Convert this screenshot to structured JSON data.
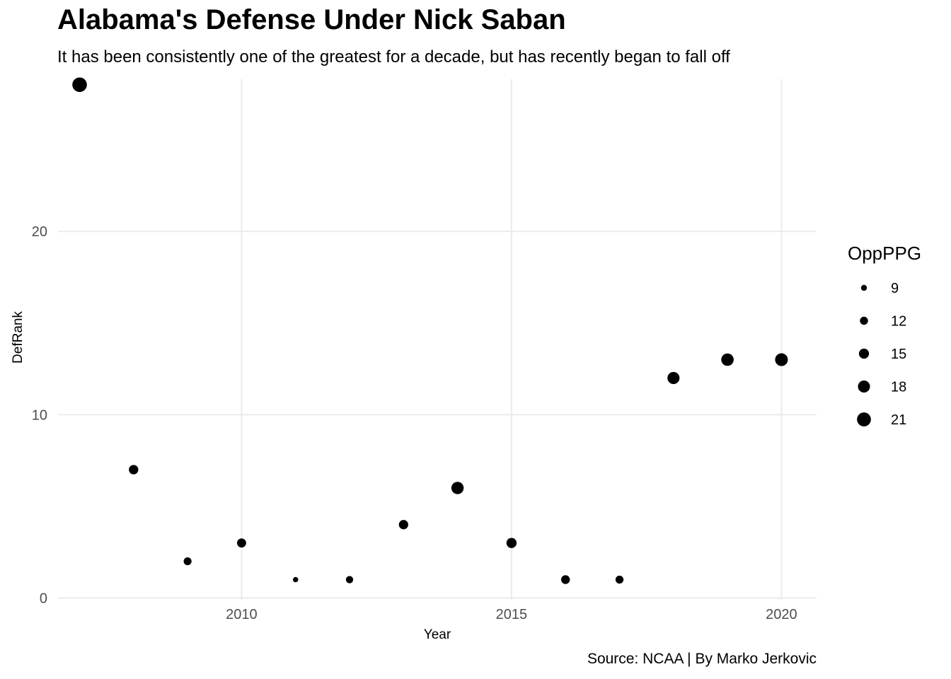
{
  "header": {
    "title": "Alabama's Defense Under Nick Saban",
    "subtitle": "It has been consistently one of the greatest for a decade, but has recently began to fall off",
    "caption": "Source: NCAA | By Marko Jerkovic"
  },
  "chart_data": {
    "type": "scatter",
    "title": "Alabama's Defense Under Nick Saban",
    "subtitle": "It has been consistently one of the greatest for a decade, but has recently began to fall off",
    "xlabel": "Year",
    "ylabel": "DefRank",
    "xlim": [
      2006.6,
      2020.65
    ],
    "ylim": [
      -0.1,
      28.3
    ],
    "x_ticks": [
      2010,
      2015,
      2020
    ],
    "y_ticks": [
      0,
      10,
      20
    ],
    "grid": true,
    "point_color": "#000000",
    "size_legend": {
      "title": "OppPPG",
      "placement": "right",
      "values": [
        9,
        12,
        15,
        18,
        21
      ]
    },
    "points": [
      {
        "year": 2007,
        "def_rank": 28,
        "opp_ppg": 22
      },
      {
        "year": 2008,
        "def_rank": 7,
        "opp_ppg": 14
      },
      {
        "year": 2009,
        "def_rank": 2,
        "opp_ppg": 11.7
      },
      {
        "year": 2010,
        "def_rank": 3,
        "opp_ppg": 13.5
      },
      {
        "year": 2011,
        "def_rank": 1,
        "opp_ppg": 8.2
      },
      {
        "year": 2012,
        "def_rank": 1,
        "opp_ppg": 10.9
      },
      {
        "year": 2013,
        "def_rank": 4,
        "opp_ppg": 13.9
      },
      {
        "year": 2014,
        "def_rank": 6,
        "opp_ppg": 18.4
      },
      {
        "year": 2015,
        "def_rank": 3,
        "opp_ppg": 15.1
      },
      {
        "year": 2016,
        "def_rank": 1,
        "opp_ppg": 13
      },
      {
        "year": 2017,
        "def_rank": 1,
        "opp_ppg": 11.9
      },
      {
        "year": 2018,
        "def_rank": 12,
        "opp_ppg": 18.1
      },
      {
        "year": 2019,
        "def_rank": 13,
        "opp_ppg": 18.6
      },
      {
        "year": 2020,
        "def_rank": 13,
        "opp_ppg": 19.1
      }
    ]
  }
}
